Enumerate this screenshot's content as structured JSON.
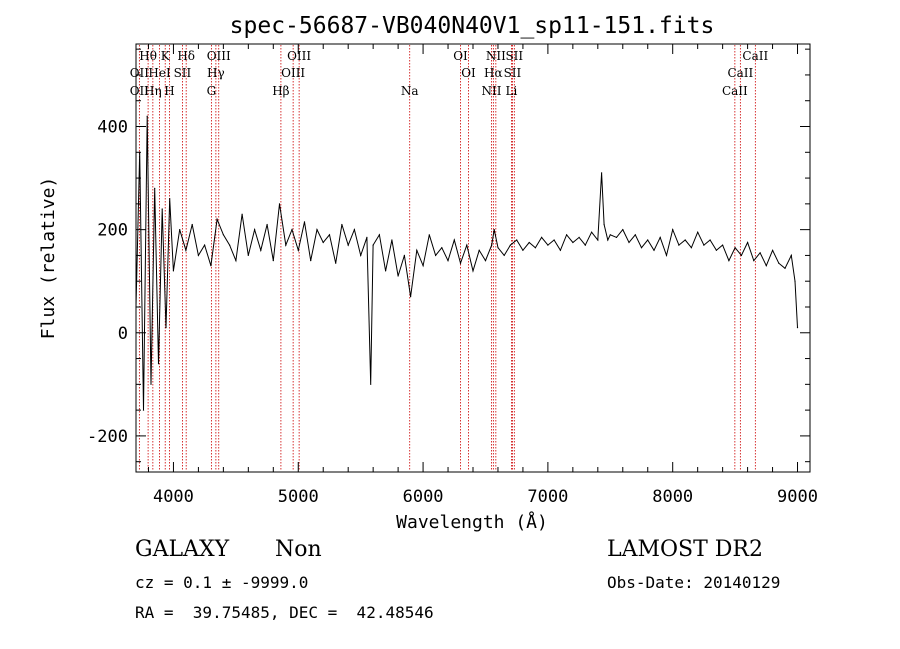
{
  "chart_data": {
    "type": "line",
    "title": "spec-56687-VB040N40V1_sp11-151.fits",
    "xlabel": "Wavelength (Å)",
    "ylabel": "Flux (relative)",
    "xlim": [
      3700,
      9100
    ],
    "ylim": [
      -270,
      560
    ],
    "xticks": [
      4000,
      5000,
      6000,
      7000,
      8000,
      9000
    ],
    "yticks": [
      -200,
      0,
      200,
      400
    ],
    "series": [
      {
        "name": "flux",
        "x": [
          3700,
          3730,
          3760,
          3790,
          3820,
          3850,
          3880,
          3910,
          3940,
          3970,
          4000,
          4050,
          4100,
          4150,
          4200,
          4250,
          4300,
          4350,
          4400,
          4450,
          4500,
          4550,
          4600,
          4650,
          4700,
          4750,
          4800,
          4850,
          4900,
          4950,
          5000,
          5050,
          5100,
          5150,
          5200,
          5250,
          5300,
          5350,
          5400,
          5450,
          5500,
          5550,
          5580,
          5600,
          5650,
          5700,
          5750,
          5800,
          5850,
          5900,
          5950,
          6000,
          6050,
          6100,
          6150,
          6200,
          6250,
          6300,
          6350,
          6400,
          6450,
          6500,
          6550,
          6570,
          6600,
          6650,
          6700,
          6750,
          6800,
          6850,
          6900,
          6950,
          7000,
          7050,
          7100,
          7150,
          7200,
          7250,
          7300,
          7350,
          7400,
          7430,
          7450,
          7480,
          7500,
          7550,
          7600,
          7650,
          7700,
          7750,
          7800,
          7850,
          7900,
          7950,
          8000,
          8050,
          8100,
          8150,
          8200,
          8250,
          8300,
          8350,
          8400,
          8450,
          8500,
          8550,
          8600,
          8650,
          8700,
          8750,
          8800,
          8850,
          8900,
          8950,
          8980,
          9000
        ],
        "y": [
          50,
          350,
          -150,
          420,
          -100,
          280,
          -60,
          240,
          10,
          260,
          120,
          200,
          160,
          210,
          150,
          170,
          130,
          220,
          190,
          170,
          140,
          230,
          150,
          200,
          160,
          210,
          140,
          250,
          170,
          200,
          160,
          215,
          140,
          200,
          175,
          190,
          135,
          210,
          170,
          200,
          150,
          185,
          -100,
          170,
          190,
          120,
          180,
          110,
          150,
          70,
          160,
          130,
          190,
          150,
          165,
          140,
          180,
          135,
          170,
          120,
          160,
          140,
          170,
          200,
          165,
          150,
          170,
          180,
          160,
          175,
          165,
          185,
          170,
          180,
          160,
          190,
          175,
          185,
          170,
          195,
          180,
          310,
          210,
          180,
          190,
          185,
          200,
          175,
          190,
          165,
          180,
          160,
          185,
          150,
          200,
          170,
          180,
          165,
          195,
          170,
          180,
          160,
          170,
          140,
          165,
          150,
          175,
          140,
          155,
          130,
          160,
          135,
          125,
          150,
          100,
          10
        ]
      }
    ],
    "spectral_lines": {
      "row1": [
        {
          "label": "Hθ",
          "wavelength": 3797
        },
        {
          "label": "K",
          "wavelength": 3934
        },
        {
          "label": "Hδ",
          "wavelength": 4102
        },
        {
          "label": "OIII",
          "wavelength": 4363
        },
        {
          "label": "OIII",
          "wavelength": 5007
        },
        {
          "label": "OI",
          "wavelength": 6300
        },
        {
          "label": "NII",
          "wavelength": 6583
        },
        {
          "label": "SII",
          "wavelength": 6731
        },
        {
          "label": "CaII",
          "wavelength": 8662
        }
      ],
      "row2": [
        {
          "label": "OII",
          "wavelength": 3727
        },
        {
          "label": "HeI",
          "wavelength": 3889
        },
        {
          "label": "SII",
          "wavelength": 4072
        },
        {
          "label": "Hγ",
          "wavelength": 4340
        },
        {
          "label": "OIII",
          "wavelength": 4959
        },
        {
          "label": "OI",
          "wavelength": 6364
        },
        {
          "label": "Hα",
          "wavelength": 6563
        },
        {
          "label": "SII",
          "wavelength": 6716
        },
        {
          "label": "CaII",
          "wavelength": 8542
        }
      ],
      "row3": [
        {
          "label": "OII",
          "wavelength": 3727
        },
        {
          "label": "Hη",
          "wavelength": 3835
        },
        {
          "label": "H",
          "wavelength": 3968
        },
        {
          "label": "G",
          "wavelength": 4304
        },
        {
          "label": "Hβ",
          "wavelength": 4861
        },
        {
          "label": "Na",
          "wavelength": 5893
        },
        {
          "label": "NII",
          "wavelength": 6548
        },
        {
          "label": "Li",
          "wavelength": 6708
        },
        {
          "label": "CaII",
          "wavelength": 8498
        }
      ]
    },
    "line_color": "#000000",
    "marker_line_color": "#cc0000"
  },
  "info": {
    "object_class": "GALAXY",
    "subclass": "Non",
    "survey": "LAMOST DR2",
    "redshift_line": "cz = 0.1 ± -9999.0",
    "obs_date_line": "Obs-Date: 20140129",
    "coords_line": "RA =  39.75485, DEC =  42.48546"
  }
}
